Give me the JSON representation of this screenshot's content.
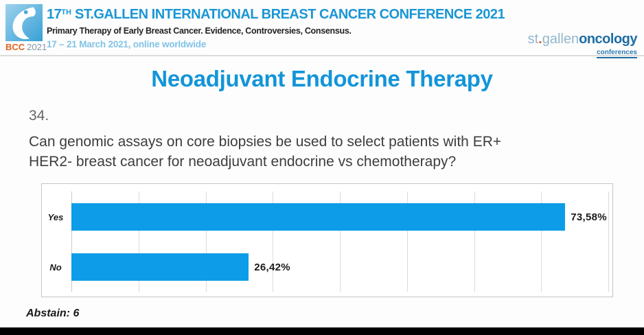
{
  "header": {
    "logo": {
      "bcc": "BCC",
      "year": "2021"
    },
    "title": {
      "num": "17",
      "sup": "TH",
      "rest": " ST.GALLEN INTERNATIONAL BREAST CANCER CONFERENCE 2021"
    },
    "subtitle": "Primary Therapy of Early Breast Cancer. Evidence, Controversies, Consensus.",
    "dates": "17 – 21 March 2021, online worldwide",
    "brand": {
      "st": "st",
      "dot": ".",
      "gallen": "gallen",
      "oncology": "oncology",
      "conferences": "conferences"
    }
  },
  "main": {
    "title": "Neoadjuvant Endocrine Therapy",
    "question_number": "34.",
    "question_lines": [
      "Can genomic assays on core biopsies be used to select patients with ER+",
      "HER2- breast cancer for neoadjuvant endocrine vs chemotherapy?"
    ],
    "abstain": "Abstain: 6"
  },
  "chart_data": {
    "type": "bar",
    "orientation": "horizontal",
    "title": "",
    "categories": [
      "Yes",
      "No"
    ],
    "values": [
      73.58,
      26.42
    ],
    "value_labels": [
      "73,58%",
      "26,42%"
    ],
    "xlim": [
      0,
      80
    ],
    "grid": true,
    "grid_interval": 10,
    "bar_color": "#0d9de8",
    "footnote": "Abstain: 6"
  },
  "colors": {
    "accent_blue": "#1295d9",
    "header_blue": "#1a96d5",
    "date_blue": "#82c3e6",
    "bar_blue": "#0d9de8",
    "brand_orange": "#e06420",
    "brand_dark_blue": "#1d6da3"
  }
}
